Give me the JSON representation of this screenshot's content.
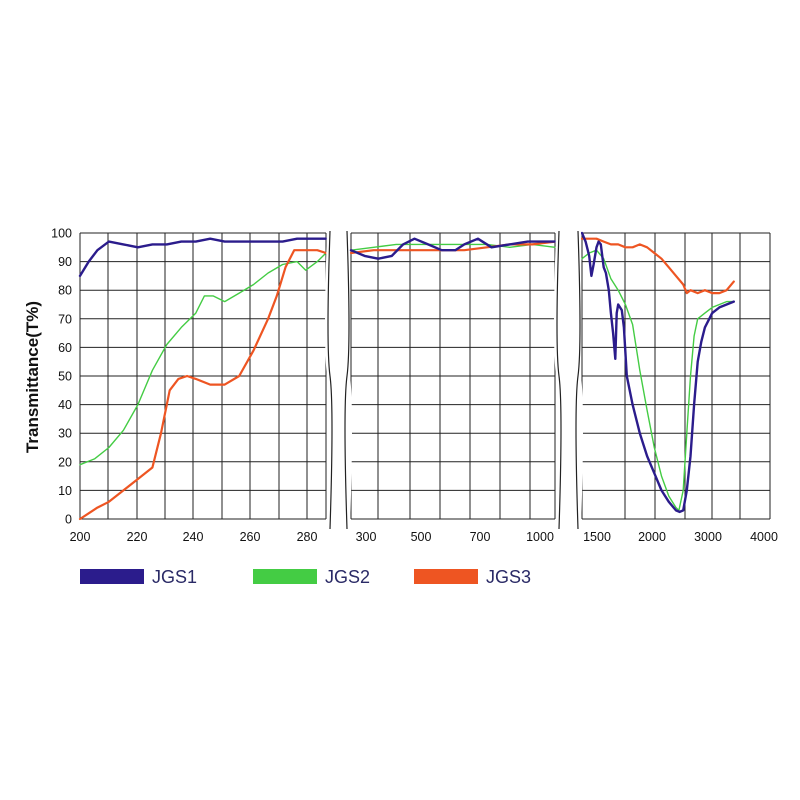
{
  "chart_data": {
    "type": "line",
    "ylabel": "Transmittance(T%)",
    "ylim": [
      0,
      100
    ],
    "yticks": [
      "0",
      "10",
      "20",
      "30",
      "40",
      "50",
      "60",
      "70",
      "80",
      "90",
      "100"
    ],
    "grid": true,
    "legend_position": "bottom",
    "colors": {
      "JGS1": "#2b1c8c",
      "JGS2": "#44cc44",
      "JGS3": "#ee5522"
    },
    "panels": [
      {
        "xlim": [
          200,
          285
        ],
        "xticks": [
          "200",
          "220",
          "240",
          "260",
          "280"
        ],
        "series": [
          {
            "name": "JGS1",
            "points": [
              [
                200,
                85
              ],
              [
                203,
                90
              ],
              [
                206,
                94
              ],
              [
                210,
                97
              ],
              [
                215,
                96
              ],
              [
                220,
                95
              ],
              [
                225,
                96
              ],
              [
                230,
                96
              ],
              [
                235,
                97
              ],
              [
                240,
                97
              ],
              [
                245,
                98
              ],
              [
                250,
                97
              ],
              [
                255,
                97
              ],
              [
                260,
                97
              ],
              [
                265,
                97
              ],
              [
                270,
                97
              ],
              [
                275,
                98
              ],
              [
                280,
                98
              ],
              [
                285,
                98
              ]
            ]
          },
          {
            "name": "JGS2",
            "points": [
              [
                200,
                19
              ],
              [
                205,
                21
              ],
              [
                210,
                25
              ],
              [
                215,
                31
              ],
              [
                220,
                40
              ],
              [
                225,
                52
              ],
              [
                230,
                61
              ],
              [
                235,
                67
              ],
              [
                240,
                72
              ],
              [
                243,
                78
              ],
              [
                246,
                78
              ],
              [
                250,
                76
              ],
              [
                255,
                79
              ],
              [
                260,
                82
              ],
              [
                265,
                86
              ],
              [
                270,
                89
              ],
              [
                275,
                90
              ],
              [
                278,
                87
              ],
              [
                282,
                90
              ],
              [
                285,
                93
              ]
            ]
          },
          {
            "name": "JGS3",
            "points": [
              [
                200,
                0
              ],
              [
                203,
                2
              ],
              [
                206,
                4
              ],
              [
                210,
                6
              ],
              [
                215,
                10
              ],
              [
                220,
                14
              ],
              [
                225,
                18
              ],
              [
                228,
                30
              ],
              [
                231,
                45
              ],
              [
                234,
                49
              ],
              [
                237,
                50
              ],
              [
                240,
                49
              ],
              [
                245,
                47
              ],
              [
                250,
                47
              ],
              [
                255,
                50
              ],
              [
                260,
                59
              ],
              [
                265,
                70
              ],
              [
                268,
                78
              ],
              [
                271,
                88
              ],
              [
                274,
                94
              ],
              [
                278,
                94
              ],
              [
                282,
                94
              ],
              [
                285,
                93
              ]
            ]
          }
        ]
      },
      {
        "xlim": [
          200,
          1100
        ],
        "xticks": [
          "300",
          "500",
          "700",
          "1000"
        ],
        "series": [
          {
            "name": "JGS1",
            "points": [
              [
                200,
                94
              ],
              [
                260,
                92
              ],
              [
                320,
                91
              ],
              [
                380,
                92
              ],
              [
                430,
                96
              ],
              [
                480,
                98
              ],
              [
                540,
                96
              ],
              [
                600,
                94
              ],
              [
                660,
                94
              ],
              [
                700,
                96
              ],
              [
                760,
                98
              ],
              [
                820,
                95
              ],
              [
                900,
                96
              ],
              [
                980,
                97
              ],
              [
                1040,
                97
              ],
              [
                1100,
                97
              ]
            ]
          },
          {
            "name": "JGS2",
            "points": [
              [
                200,
                94
              ],
              [
                300,
                95
              ],
              [
                400,
                96
              ],
              [
                500,
                96
              ],
              [
                600,
                96
              ],
              [
                700,
                96
              ],
              [
                800,
                96
              ],
              [
                900,
                95
              ],
              [
                1000,
                96
              ],
              [
                1100,
                95
              ]
            ]
          },
          {
            "name": "JGS3",
            "points": [
              [
                200,
                93
              ],
              [
                300,
                94
              ],
              [
                400,
                94
              ],
              [
                500,
                94
              ],
              [
                600,
                94
              ],
              [
                700,
                94
              ],
              [
                800,
                95
              ],
              [
                900,
                96
              ],
              [
                1000,
                96
              ],
              [
                1100,
                97
              ]
            ]
          }
        ]
      },
      {
        "xlim": [
          1400,
          4000
        ],
        "xticks": [
          "1500",
          "2000",
          "3000",
          "4000"
        ],
        "series": [
          {
            "name": "JGS1",
            "points": [
              [
                1400,
                100
              ],
              [
                1450,
                97
              ],
              [
                1500,
                92
              ],
              [
                1530,
                85
              ],
              [
                1560,
                89
              ],
              [
                1600,
                95
              ],
              [
                1630,
                97
              ],
              [
                1660,
                96
              ],
              [
                1700,
                88
              ],
              [
                1730,
                86
              ],
              [
                1770,
                80
              ],
              [
                1800,
                72
              ],
              [
                1830,
                65
              ],
              [
                1860,
                56
              ],
              [
                1880,
                72
              ],
              [
                1900,
                75
              ],
              [
                1950,
                73
              ],
              [
                1980,
                67
              ],
              [
                2020,
                50
              ],
              [
                2100,
                40
              ],
              [
                2200,
                30
              ],
              [
                2300,
                22
              ],
              [
                2400,
                16
              ],
              [
                2500,
                10
              ],
              [
                2600,
                6
              ],
              [
                2700,
                3
              ],
              [
                2750,
                2.5
              ],
              [
                2800,
                3
              ],
              [
                2850,
                10
              ],
              [
                2900,
                22
              ],
              [
                2950,
                40
              ],
              [
                3000,
                55
              ],
              [
                3050,
                62
              ],
              [
                3100,
                67
              ],
              [
                3200,
                72
              ],
              [
                3300,
                74
              ],
              [
                3400,
                75
              ],
              [
                3500,
                76
              ]
            ]
          },
          {
            "name": "JGS2",
            "points": [
              [
                1400,
                91
              ],
              [
                1500,
                93
              ],
              [
                1600,
                94
              ],
              [
                1700,
                91
              ],
              [
                1800,
                84
              ],
              [
                1900,
                80
              ],
              [
                2000,
                75
              ],
              [
                2100,
                68
              ],
              [
                2200,
                52
              ],
              [
                2300,
                38
              ],
              [
                2400,
                25
              ],
              [
                2500,
                15
              ],
              [
                2600,
                8
              ],
              [
                2700,
                4
              ],
              [
                2740,
                3
              ],
              [
                2800,
                10
              ],
              [
                2850,
                30
              ],
              [
                2900,
                50
              ],
              [
                2950,
                64
              ],
              [
                3000,
                70
              ],
              [
                3100,
                72
              ],
              [
                3200,
                74
              ],
              [
                3300,
                75
              ],
              [
                3400,
                76
              ],
              [
                3500,
                76
              ]
            ]
          },
          {
            "name": "JGS3",
            "points": [
              [
                1400,
                98
              ],
              [
                1500,
                98
              ],
              [
                1600,
                98
              ],
              [
                1700,
                97
              ],
              [
                1800,
                96
              ],
              [
                1900,
                96
              ],
              [
                2000,
                95
              ],
              [
                2100,
                95
              ],
              [
                2200,
                96
              ],
              [
                2300,
                95
              ],
              [
                2400,
                93
              ],
              [
                2500,
                91
              ],
              [
                2600,
                88
              ],
              [
                2700,
                85
              ],
              [
                2800,
                82
              ],
              [
                2850,
                79
              ],
              [
                2900,
                80
              ],
              [
                3000,
                79
              ],
              [
                3100,
                80
              ],
              [
                3200,
                79
              ],
              [
                3300,
                79
              ],
              [
                3400,
                80
              ],
              [
                3500,
                83
              ]
            ]
          }
        ]
      }
    ]
  }
}
